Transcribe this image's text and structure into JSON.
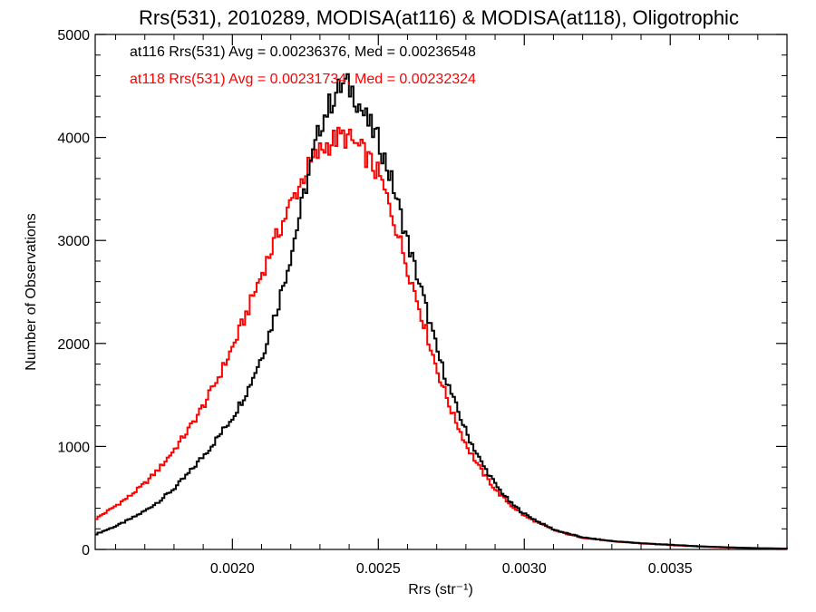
{
  "chart_data": {
    "type": "line",
    "title": "Rrs(531), 2010289, MODISA(at116) & MODISA(at118), Oligotrophic",
    "xlabel": "Rrs (str⁻¹)",
    "ylabel": "Number of Observations",
    "xlim": [
      0.00153,
      0.0039
    ],
    "ylim": [
      0,
      5000
    ],
    "x_ticks": [
      0.002,
      0.0025,
      0.003,
      0.0035
    ],
    "x_tick_labels": [
      "0.0020",
      "0.0025",
      "0.0030",
      "0.0035"
    ],
    "y_ticks": [
      0,
      1000,
      2000,
      3000,
      4000,
      5000
    ],
    "y_tick_labels": [
      "0",
      "1000",
      "2000",
      "3000",
      "4000",
      "5000"
    ],
    "grid": false,
    "legend_position": "top-left",
    "series": [
      {
        "name": "at116",
        "color": "#000000",
        "annotation": "at116 Rrs(531) Avg = 0.00236376, Med = 0.00236548",
        "points": [
          [
            0.00153,
            150
          ],
          [
            0.0016,
            230
          ],
          [
            0.00165,
            300
          ],
          [
            0.0017,
            380
          ],
          [
            0.00175,
            480
          ],
          [
            0.0018,
            600
          ],
          [
            0.00185,
            750
          ],
          [
            0.0019,
            920
          ],
          [
            0.00195,
            1100
          ],
          [
            0.002,
            1300
          ],
          [
            0.00205,
            1560
          ],
          [
            0.0021,
            1900
          ],
          [
            0.00215,
            2350
          ],
          [
            0.0022,
            2900
          ],
          [
            0.00225,
            3550
          ],
          [
            0.0023,
            4150
          ],
          [
            0.00235,
            4430
          ],
          [
            0.00238,
            4520
          ],
          [
            0.00241,
            4450
          ],
          [
            0.00245,
            4200
          ],
          [
            0.0025,
            3950
          ],
          [
            0.00255,
            3500
          ],
          [
            0.0026,
            2950
          ],
          [
            0.00265,
            2450
          ],
          [
            0.0027,
            1900
          ],
          [
            0.00275,
            1480
          ],
          [
            0.0028,
            1120
          ],
          [
            0.00285,
            840
          ],
          [
            0.0029,
            620
          ],
          [
            0.00295,
            450
          ],
          [
            0.003,
            340
          ],
          [
            0.00305,
            260
          ],
          [
            0.0031,
            190
          ],
          [
            0.00315,
            150
          ],
          [
            0.0032,
            115
          ],
          [
            0.0033,
            80
          ],
          [
            0.0034,
            60
          ],
          [
            0.0035,
            45
          ],
          [
            0.0036,
            30
          ],
          [
            0.0037,
            20
          ],
          [
            0.0038,
            12
          ],
          [
            0.0039,
            8
          ]
        ]
      },
      {
        "name": "at118",
        "color": "#ff0000",
        "annotation": "at118 Rrs(531) Avg = 0.00231734, Med = 0.00232324",
        "points": [
          [
            0.00153,
            300
          ],
          [
            0.0016,
            430
          ],
          [
            0.00165,
            530
          ],
          [
            0.0017,
            650
          ],
          [
            0.00175,
            800
          ],
          [
            0.0018,
            980
          ],
          [
            0.00185,
            1180
          ],
          [
            0.0019,
            1410
          ],
          [
            0.00195,
            1680
          ],
          [
            0.002,
            1980
          ],
          [
            0.00205,
            2330
          ],
          [
            0.0021,
            2700
          ],
          [
            0.00215,
            3050
          ],
          [
            0.0022,
            3380
          ],
          [
            0.00225,
            3680
          ],
          [
            0.0023,
            3880
          ],
          [
            0.00235,
            3990
          ],
          [
            0.00238,
            4010
          ],
          [
            0.00241,
            3950
          ],
          [
            0.00245,
            3840
          ],
          [
            0.0025,
            3620
          ],
          [
            0.00255,
            3200
          ],
          [
            0.0026,
            2700
          ],
          [
            0.00265,
            2220
          ],
          [
            0.0027,
            1720
          ],
          [
            0.00275,
            1320
          ],
          [
            0.0028,
            1000
          ],
          [
            0.00285,
            760
          ],
          [
            0.0029,
            570
          ],
          [
            0.00295,
            430
          ],
          [
            0.003,
            320
          ],
          [
            0.00305,
            250
          ],
          [
            0.0031,
            185
          ],
          [
            0.00315,
            145
          ],
          [
            0.0032,
            112
          ],
          [
            0.0033,
            78
          ],
          [
            0.0034,
            58
          ],
          [
            0.0035,
            42
          ],
          [
            0.0036,
            28
          ],
          [
            0.0037,
            18
          ],
          [
            0.0038,
            11
          ],
          [
            0.0039,
            7
          ]
        ]
      }
    ]
  }
}
